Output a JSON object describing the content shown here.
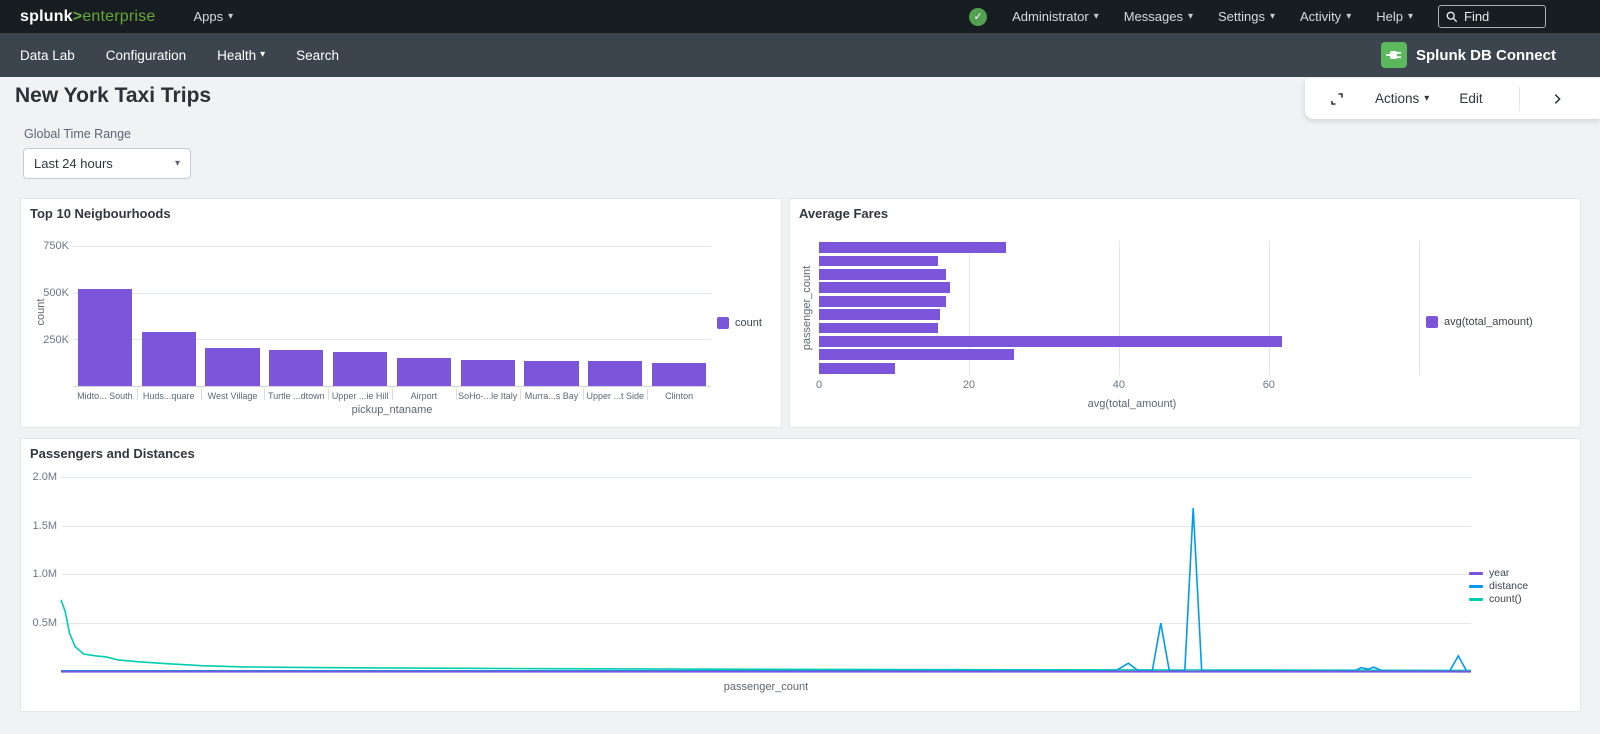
{
  "topnav": {
    "logo": {
      "brand": "splunk",
      "sep": ">",
      "product": "enterprise"
    },
    "apps_label": "Apps",
    "menus": [
      "Administrator",
      "Messages",
      "Settings",
      "Activity",
      "Help"
    ],
    "find_placeholder": "Find"
  },
  "appbar": {
    "items": [
      "Data Lab",
      "Configuration",
      "Health",
      "Search"
    ],
    "app_title": "Splunk DB Connect"
  },
  "toolbar": {
    "actions_label": "Actions",
    "edit_label": "Edit"
  },
  "page": {
    "title": "New York Taxi Trips",
    "time_range_label": "Global Time Range",
    "time_range_value": "Last 24 hours"
  },
  "colors": {
    "brand_green": "#65A637",
    "health_green": "#53A051",
    "dbx_green": "#5CB85C",
    "topbar_bg": "#171D21",
    "appbar_bg": "#3C444D",
    "chart_purple": "#7B56DB",
    "chart_blue": "#009CEB",
    "chart_teal": "#00CDAF"
  },
  "chart_data": [
    {
      "type": "bar",
      "title": "Top 10 Neigbourhoods",
      "xlabel": "pickup_ntaname",
      "ylabel": "count",
      "categories": [
        "Midto... South",
        "Huds...quare",
        "West Village",
        "Turtle ...dtown",
        "Upper ...ie Hill",
        "Airport",
        "SoHo-...le Italy",
        "Murra...s Bay",
        "Upper ...t Side",
        "Clinton"
      ],
      "values": [
        520000,
        290000,
        205000,
        192000,
        182000,
        150000,
        142000,
        136000,
        133000,
        125000
      ],
      "yticks": [
        {
          "value": 250000,
          "label": "250K"
        },
        {
          "value": 500000,
          "label": "500K"
        },
        {
          "value": 750000,
          "label": "750K"
        }
      ],
      "ymax": 800000,
      "grid": "horizontal",
      "legend_position": "right",
      "legend": [
        {
          "label": "count",
          "color": "#7B56DB"
        }
      ],
      "color": "#7B56DB"
    },
    {
      "type": "hbar",
      "title": "Average Fares",
      "xlabel": "avg(total_amount)",
      "ylabel": "passenger_count",
      "values": [
        25.0,
        15.9,
        17.0,
        17.5,
        17.0,
        16.2,
        15.9,
        61.7,
        26.0,
        10.2
      ],
      "xticks": [
        {
          "value": 0,
          "label": "0"
        },
        {
          "value": 20,
          "label": "20"
        },
        {
          "value": 40,
          "label": "40"
        },
        {
          "value": 60,
          "label": "60"
        },
        {
          "value": 80,
          "label": ""
        }
      ],
      "xmax": 83.5,
      "grid": "vertical",
      "legend_position": "right",
      "legend": [
        {
          "label": "avg(total_amount)",
          "color": "#7B56DB"
        }
      ],
      "color": "#7B56DB"
    },
    {
      "type": "line",
      "title": "Passengers and Distances",
      "xlabel": "passenger_count",
      "ylabel": "",
      "yticks": [
        {
          "value": 0.5,
          "label": "0.5M"
        },
        {
          "value": 1.0,
          "label": "1.0M"
        },
        {
          "value": 1.5,
          "label": "1.5M"
        },
        {
          "value": 2.0,
          "label": "2.0M"
        }
      ],
      "ymax": 2.05,
      "unit": "M",
      "grid": "horizontal",
      "legend_position": "right",
      "legend": [
        {
          "label": "year",
          "color": "#7B56DB"
        },
        {
          "label": "distance",
          "color": "#009CEB"
        },
        {
          "label": "count()",
          "color": "#00CDAF"
        }
      ],
      "series": [
        {
          "name": "count()",
          "color": "#00CDAF",
          "points": [
            [
              0,
              0.74
            ],
            [
              0.003,
              0.62
            ],
            [
              0.006,
              0.4
            ],
            [
              0.01,
              0.26
            ],
            [
              0.016,
              0.185
            ],
            [
              0.025,
              0.165
            ],
            [
              0.032,
              0.155
            ],
            [
              0.04,
              0.125
            ],
            [
              0.055,
              0.105
            ],
            [
              0.075,
              0.085
            ],
            [
              0.1,
              0.065
            ],
            [
              0.13,
              0.052
            ],
            [
              0.18,
              0.045
            ],
            [
              0.25,
              0.04
            ],
            [
              0.35,
              0.034
            ],
            [
              0.5,
              0.028
            ],
            [
              0.65,
              0.024
            ],
            [
              0.8,
              0.021
            ],
            [
              0.92,
              0.018
            ],
            [
              1.0,
              0.016
            ]
          ]
        },
        {
          "name": "distance",
          "color": "#009CEB",
          "points": [
            [
              0,
              0.012
            ],
            [
              0.4,
              0.012
            ],
            [
              0.7,
              0.012
            ],
            [
              0.748,
              0.012
            ],
            [
              0.757,
              0.09
            ],
            [
              0.764,
              0.012
            ],
            [
              0.774,
              0.012
            ],
            [
              0.78,
              0.5
            ],
            [
              0.786,
              0.012
            ],
            [
              0.797,
              0.012
            ],
            [
              0.803,
              1.68
            ],
            [
              0.809,
              0.012
            ],
            [
              0.9,
              0.01
            ],
            [
              0.918,
              0.012
            ],
            [
              0.922,
              0.045
            ],
            [
              0.927,
              0.028
            ],
            [
              0.931,
              0.05
            ],
            [
              0.937,
              0.012
            ],
            [
              0.985,
              0.01
            ],
            [
              0.991,
              0.165
            ],
            [
              0.997,
              0.006
            ]
          ]
        },
        {
          "name": "year",
          "color": "#7B56DB",
          "points": [
            [
              0,
              0.004
            ],
            [
              1,
              0.004
            ]
          ]
        }
      ]
    }
  ]
}
